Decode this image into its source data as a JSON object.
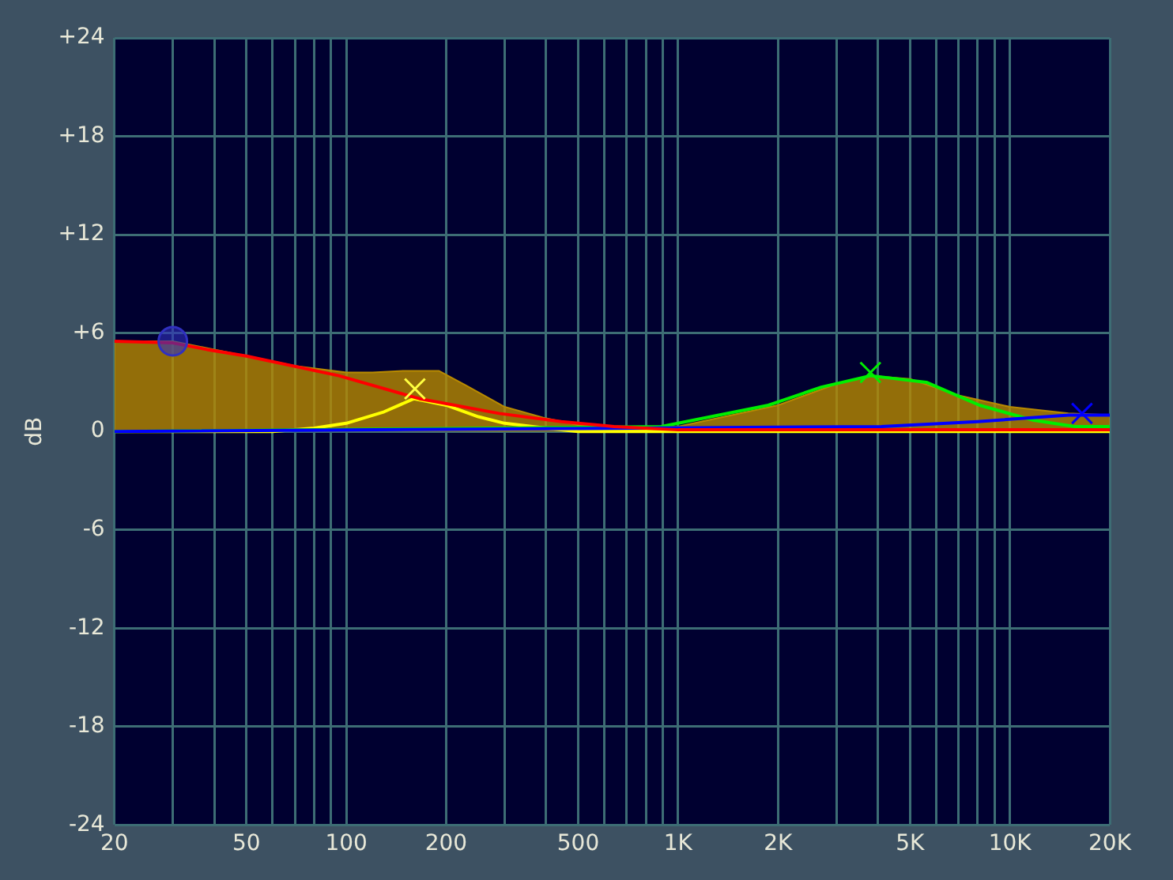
{
  "chart_data": {
    "type": "line",
    "ylabel": "dB",
    "log": "x",
    "grid": true,
    "legend": false,
    "xlim": [
      20,
      20000
    ],
    "ylim": [
      -24,
      24
    ],
    "xticks": [
      {
        "value": 20,
        "label": "20"
      },
      {
        "value": 30,
        "label": null
      },
      {
        "value": 40,
        "label": null
      },
      {
        "value": 50,
        "label": "50"
      },
      {
        "value": 60,
        "label": null
      },
      {
        "value": 70,
        "label": null
      },
      {
        "value": 80,
        "label": null
      },
      {
        "value": 90,
        "label": null
      },
      {
        "value": 100,
        "label": "100"
      },
      {
        "value": 200,
        "label": "200"
      },
      {
        "value": 300,
        "label": null
      },
      {
        "value": 400,
        "label": null
      },
      {
        "value": 500,
        "label": "500"
      },
      {
        "value": 600,
        "label": null
      },
      {
        "value": 700,
        "label": null
      },
      {
        "value": 800,
        "label": null
      },
      {
        "value": 900,
        "label": null
      },
      {
        "value": 1000,
        "label": "1K"
      },
      {
        "value": 2000,
        "label": "2K"
      },
      {
        "value": 3000,
        "label": null
      },
      {
        "value": 4000,
        "label": null
      },
      {
        "value": 5000,
        "label": "5K"
      },
      {
        "value": 6000,
        "label": null
      },
      {
        "value": 7000,
        "label": null
      },
      {
        "value": 8000,
        "label": null
      },
      {
        "value": 9000,
        "label": null
      },
      {
        "value": 10000,
        "label": "10K"
      },
      {
        "value": 20000,
        "label": "20K"
      }
    ],
    "yticks": [
      {
        "value": -24,
        "label": "-24"
      },
      {
        "value": -18,
        "label": "-18"
      },
      {
        "value": -12,
        "label": "-12"
      },
      {
        "value": -6,
        "label": "-6"
      },
      {
        "value": 0,
        "label": "0"
      },
      {
        "value": 6,
        "label": "+6"
      },
      {
        "value": 12,
        "label": "+12"
      },
      {
        "value": 18,
        "label": "+18"
      },
      {
        "value": 24,
        "label": "+24"
      }
    ],
    "series": [
      {
        "type": "area",
        "color": "#b88a00",
        "x": [
          20,
          30,
          40,
          50,
          70,
          100,
          120,
          150,
          190,
          230,
          300,
          400,
          500,
          700,
          1000,
          2000,
          3000,
          3800,
          5000,
          7000,
          10000,
          15000,
          20000
        ],
        "values": [
          5.5,
          5.5,
          5.0,
          4.6,
          4.0,
          3.6,
          3.6,
          3.7,
          3.7,
          2.8,
          1.5,
          0.8,
          0.4,
          0.2,
          0.3,
          1.6,
          2.9,
          3.4,
          3.2,
          2.2,
          1.5,
          1.1,
          1.0
        ]
      },
      {
        "type": "line",
        "color": "#ffff00",
        "x": [
          20,
          60,
          80,
          100,
          130,
          160,
          200,
          250,
          300,
          400,
          500,
          20000
        ],
        "values": [
          0,
          0,
          0.2,
          0.5,
          1.2,
          2.0,
          1.6,
          0.9,
          0.5,
          0.2,
          0,
          0
        ]
      },
      {
        "type": "line",
        "color": "#00ee00",
        "x": [
          20,
          890,
          1870,
          2700,
          3800,
          5600,
          8100,
          11700,
          15700,
          20000
        ],
        "values": [
          0,
          0.3,
          1.6,
          2.7,
          3.4,
          3.0,
          1.6,
          0.7,
          0.3,
          0.3
        ]
      },
      {
        "type": "line",
        "color": "#0000ff",
        "x": [
          20,
          4100,
          8000,
          15000,
          20000
        ],
        "values": [
          0,
          0.3,
          0.6,
          1.0,
          1.0
        ]
      },
      {
        "type": "line",
        "color": "#ff0000",
        "x": [
          20,
          30,
          38,
          50,
          95,
          166,
          289,
          445,
          641,
          1000,
          20000
        ],
        "values": [
          5.5,
          5.4,
          5.0,
          4.6,
          3.4,
          2.0,
          1.1,
          0.6,
          0.3,
          0.1,
          0.1
        ]
      },
      {
        "type": "scatter",
        "marker": "circle",
        "color": "#3030c0",
        "x": [
          30
        ],
        "values": [
          5.5
        ]
      },
      {
        "type": "scatter",
        "marker": "cross",
        "color": "#ffff40",
        "x": [
          161
        ],
        "values": [
          2.6
        ]
      },
      {
        "type": "scatter",
        "marker": "cross",
        "color": "#00ee00",
        "x": [
          3800
        ],
        "values": [
          3.6
        ]
      },
      {
        "type": "scatter",
        "marker": "cross",
        "color": "#0000ff",
        "x": [
          16500
        ],
        "values": [
          1.1
        ]
      }
    ]
  }
}
